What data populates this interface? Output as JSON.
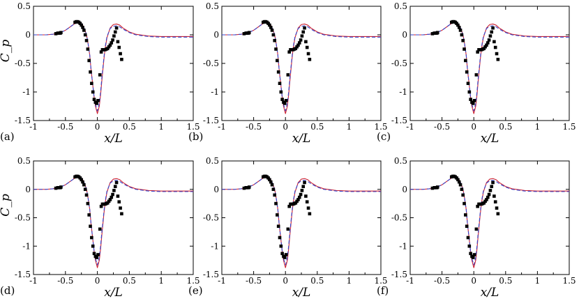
{
  "figure": {
    "xlabel": "x/L",
    "ylabel": "C_p",
    "panel_labels": [
      "(a)",
      "(b)",
      "(c)",
      "(d)",
      "(e)",
      "(f)"
    ]
  },
  "colors": {
    "solid_line": "#cc2030",
    "dashed_line": "#3344cc",
    "markers": "#000000",
    "axes": "#000000"
  },
  "chart_data": {
    "type": "line",
    "grid": false,
    "xlim": [
      -1,
      1.5
    ],
    "ylim": [
      -1.5,
      0.5
    ],
    "xticks": [
      -1,
      -0.5,
      0,
      0.5,
      1,
      1.5
    ],
    "xtick_labels": [
      "-1",
      "-0.5",
      "0",
      "0.5",
      "1",
      "1.5"
    ],
    "yticks": [
      0.5,
      0,
      -0.5,
      -1,
      -1.5
    ],
    "ytick_labels": [
      "0.5",
      "0",
      "-0.5",
      "-1",
      "-1.5"
    ],
    "panels": [
      {
        "label": "(a)"
      },
      {
        "label": "(b)"
      },
      {
        "label": "(c)"
      },
      {
        "label": "(d)"
      },
      {
        "label": "(e)"
      },
      {
        "label": "(f)"
      }
    ],
    "series": [
      {
        "style": "solid-line",
        "x": [
          -1.0,
          -0.8,
          -0.7,
          -0.6,
          -0.5,
          -0.45,
          -0.4,
          -0.35,
          -0.3,
          -0.27,
          -0.25,
          -0.22,
          -0.2,
          -0.17,
          -0.15,
          -0.12,
          -0.1,
          -0.07,
          -0.05,
          -0.03,
          0.0,
          0.03,
          0.05,
          0.07,
          0.1,
          0.12,
          0.15,
          0.2,
          0.25,
          0.3,
          0.35,
          0.4,
          0.5,
          0.6,
          0.8,
          1.0,
          1.2,
          1.5
        ],
        "y": [
          0.0,
          0.0,
          0.01,
          0.03,
          0.08,
          0.12,
          0.16,
          0.2,
          0.22,
          0.22,
          0.2,
          0.15,
          0.1,
          0.0,
          -0.12,
          -0.35,
          -0.6,
          -0.9,
          -1.1,
          -1.25,
          -1.38,
          -1.25,
          -1.05,
          -0.8,
          -0.45,
          -0.25,
          -0.05,
          0.12,
          0.18,
          0.19,
          0.17,
          0.12,
          0.05,
          0.01,
          -0.02,
          -0.03,
          -0.03,
          -0.03
        ]
      },
      {
        "style": "dashed-line",
        "x": [
          -1.0,
          -0.8,
          -0.7,
          -0.6,
          -0.5,
          -0.45,
          -0.4,
          -0.35,
          -0.3,
          -0.27,
          -0.25,
          -0.22,
          -0.2,
          -0.17,
          -0.15,
          -0.12,
          -0.1,
          -0.07,
          -0.05,
          -0.03,
          0.0,
          0.03,
          0.05,
          0.07,
          0.1,
          0.12,
          0.15,
          0.2,
          0.25,
          0.3,
          0.35,
          0.4,
          0.5,
          0.6,
          0.8,
          1.0,
          1.2,
          1.5
        ],
        "y": [
          0.0,
          0.0,
          0.01,
          0.03,
          0.08,
          0.12,
          0.16,
          0.2,
          0.22,
          0.22,
          0.2,
          0.15,
          0.1,
          0.0,
          -0.12,
          -0.35,
          -0.6,
          -0.9,
          -1.1,
          -1.22,
          -1.33,
          -1.2,
          -1.0,
          -0.75,
          -0.42,
          -0.22,
          -0.03,
          0.11,
          0.15,
          0.16,
          0.14,
          0.1,
          0.04,
          0.0,
          -0.03,
          -0.04,
          -0.04,
          -0.04
        ]
      },
      {
        "style": "square-markers",
        "x": [
          -0.65,
          -0.62,
          -0.6,
          -0.58,
          -0.57,
          -0.35,
          -0.33,
          -0.31,
          -0.29,
          -0.27,
          -0.25,
          -0.23,
          -0.21,
          -0.19,
          -0.17,
          -0.15,
          -0.13,
          -0.11,
          -0.09,
          -0.07,
          -0.05,
          -0.03,
          -0.01,
          0.01,
          0.04,
          0.06,
          0.08,
          0.1,
          0.12,
          0.14,
          0.16,
          0.18,
          0.2,
          0.22,
          0.24,
          0.26,
          0.28,
          0.3,
          0.32,
          0.34,
          0.36,
          0.38
        ],
        "y": [
          0.02,
          0.03,
          0.03,
          0.03,
          0.04,
          0.22,
          0.23,
          0.23,
          0.22,
          0.2,
          0.17,
          0.13,
          0.08,
          0.0,
          -0.1,
          -0.25,
          -0.45,
          -0.65,
          -0.85,
          -1.0,
          -1.13,
          -1.18,
          -1.2,
          -1.15,
          -0.7,
          -0.3,
          -0.26,
          -0.26,
          -0.26,
          -0.25,
          -0.24,
          -0.21,
          -0.18,
          -0.14,
          -0.09,
          -0.02,
          0.05,
          0.12,
          -0.12,
          -0.22,
          -0.33,
          -0.43
        ]
      }
    ]
  }
}
